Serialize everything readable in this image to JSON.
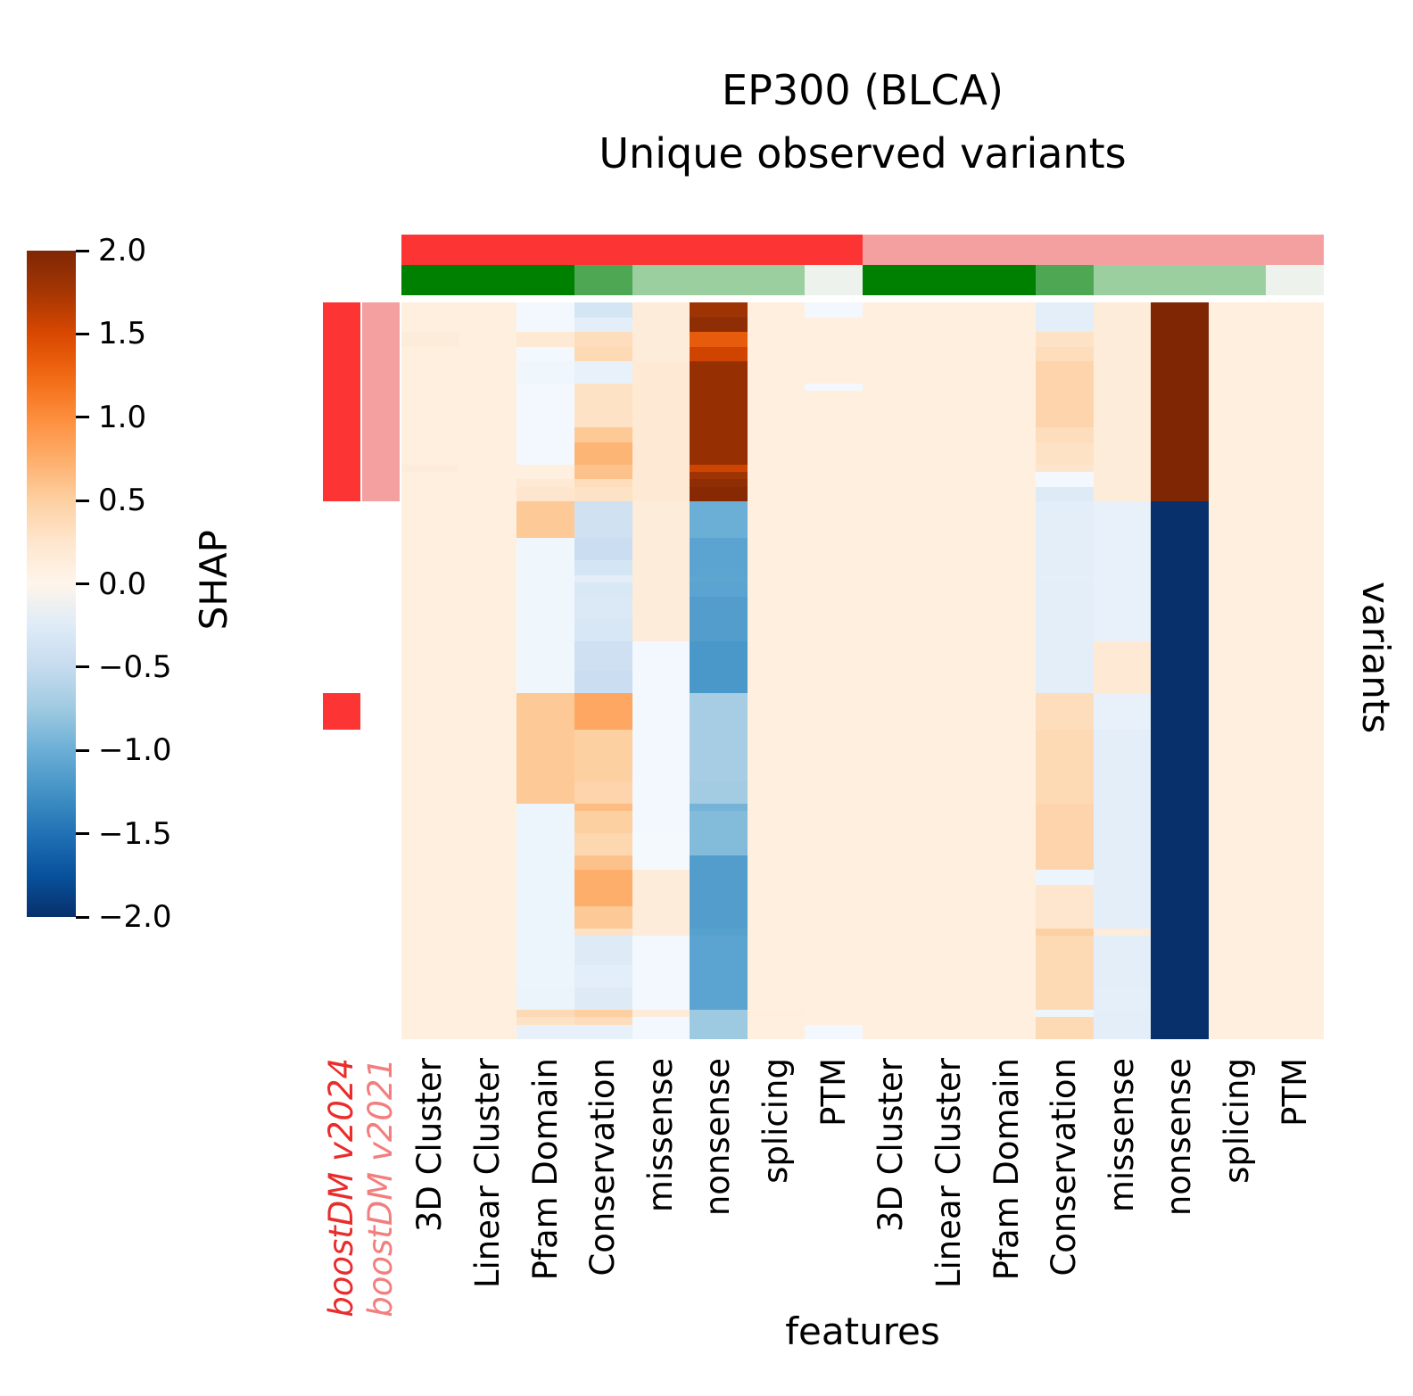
{
  "title": {
    "line1": "EP300 (BLCA)",
    "line2": "Unique observed variants"
  },
  "axes": {
    "x_label": "features",
    "y_label": "variants"
  },
  "colorbar": {
    "label": "SHAP",
    "ticks": [
      "2.0",
      "1.5",
      "1.0",
      "0.5",
      "0.0",
      "−0.5",
      "−1.0",
      "−1.5",
      "−2.0"
    ],
    "vmax_color": "#7f2704",
    "zero_color": "#fff5eb",
    "vmin_color": "#08306b"
  },
  "chart_data": {
    "type": "heatmap",
    "title": "EP300 (BLCA) Unique observed variants",
    "value_name": "SHAP",
    "value_range": [
      -2,
      2
    ],
    "xlabel": "features",
    "ylabel": "variants",
    "columns": [
      "3D Cluster",
      "Linear Cluster",
      "Pfam Domain",
      "Conservation",
      "missense",
      "nonsense",
      "splicing",
      "PTM",
      "3D Cluster",
      "Linear Cluster",
      "Pfam Domain",
      "Conservation",
      "missense",
      "nonsense",
      "splicing",
      "PTM"
    ],
    "row_annotation_columns": [
      {
        "label": "boostDM v2024",
        "fill_color": "#fc3434",
        "text_color": "#e92c2c"
      },
      {
        "label": "boostDM v2021",
        "fill_color": "#f5a0a0",
        "text_color": "#f37e7e"
      }
    ],
    "column_annotations": {
      "model_bar": [
        {
          "label": "boostDM v2024",
          "span": 8,
          "color": "#fc3434"
        },
        {
          "label": "boostDM v2021",
          "span": 8,
          "color": "#f5a0a0"
        }
      ],
      "feature_group_bar": [
        {
          "span": 3,
          "color": "#008000"
        },
        {
          "span": 1,
          "color": "#4ea853"
        },
        {
          "span": 3,
          "color": "#9ccf9f"
        },
        {
          "span": 1,
          "color": "#edf2ec"
        },
        {
          "span": 3,
          "color": "#008000"
        },
        {
          "span": 1,
          "color": "#4ea853"
        },
        {
          "span": 3,
          "color": "#9ccf9f"
        },
        {
          "span": 1,
          "color": "#edf2ec"
        }
      ]
    },
    "positive_ramp": [
      "#fff5eb",
      "#fee6ce",
      "#fdd0a2",
      "#fdae6b",
      "#fd8d3c",
      "#f16913",
      "#d94801",
      "#a63603",
      "#7f2704"
    ],
    "negative_ramp": [
      "#f7fbff",
      "#deebf7",
      "#c6dbef",
      "#9ecae1",
      "#6baed6",
      "#4292c6",
      "#2171b5",
      "#08519c",
      "#08306b"
    ],
    "row_groups": [
      {
        "n": 2,
        "ann": [
          1,
          1
        ],
        "shap": [
          0.1,
          0.1,
          -0.05,
          -0.35,
          0.15,
          1.8,
          0.1,
          -0.05,
          0.1,
          0.1,
          0.1,
          -0.2,
          0.15,
          2,
          0.1,
          0.1
        ]
      },
      {
        "n": 2,
        "ann": [
          1,
          1
        ],
        "shap": [
          0.1,
          0.1,
          -0.05,
          -0.2,
          0.15,
          1.9,
          0.1,
          0.1,
          0.1,
          0.1,
          0.1,
          -0.2,
          0.15,
          2,
          0.1,
          0.1
        ]
      },
      {
        "n": 2,
        "ann": [
          1,
          1
        ],
        "shap": [
          0.15,
          0.1,
          0.2,
          0.35,
          0.15,
          1.35,
          0.1,
          0.1,
          0.1,
          0.1,
          0.1,
          0.3,
          0.15,
          2,
          0.1,
          0.1
        ]
      },
      {
        "n": 2,
        "ann": [
          1,
          1
        ],
        "shap": [
          0.1,
          0.1,
          -0.05,
          0.4,
          0.15,
          1.55,
          0.1,
          0.1,
          0.1,
          0.1,
          0.1,
          0.35,
          0.15,
          2,
          0.1,
          0.1
        ]
      },
      {
        "n": 3,
        "ann": [
          1,
          1
        ],
        "shap": [
          0.1,
          0.1,
          -0.08,
          -0.15,
          0.2,
          1.85,
          0.1,
          0.1,
          0.1,
          0.1,
          0.1,
          0.45,
          0.15,
          2,
          0.1,
          0.1
        ]
      },
      {
        "n": 1,
        "ann": [
          1,
          1
        ],
        "shap": [
          0.1,
          0.1,
          -0.05,
          0.3,
          0.2,
          1.85,
          0.1,
          -0.05,
          0.1,
          0.1,
          0.1,
          0.45,
          0.15,
          2,
          0.1,
          0.1
        ]
      },
      {
        "n": 5,
        "ann": [
          1,
          1
        ],
        "shap": [
          0.1,
          0.1,
          -0.05,
          0.3,
          0.2,
          1.85,
          0.1,
          0.1,
          0.1,
          0.1,
          0.1,
          0.45,
          0.15,
          2,
          0.1,
          0.1
        ]
      },
      {
        "n": 2,
        "ann": [
          1,
          1
        ],
        "shap": [
          0.1,
          0.1,
          -0.05,
          0.55,
          0.2,
          1.85,
          0.1,
          0.1,
          0.1,
          0.1,
          0.1,
          0.35,
          0.15,
          2,
          0.1,
          0.1
        ]
      },
      {
        "n": 3,
        "ann": [
          1,
          1
        ],
        "shap": [
          0.1,
          0.1,
          -0.05,
          0.7,
          0.2,
          1.85,
          0.1,
          0.1,
          0.1,
          0.1,
          0.1,
          0.3,
          0.15,
          2,
          0.1,
          0.1
        ]
      },
      {
        "n": 1,
        "ann": [
          1,
          1
        ],
        "shap": [
          0.15,
          0.1,
          0.1,
          0.6,
          0.2,
          1.55,
          0.1,
          0.1,
          0.1,
          0.1,
          0.1,
          0.25,
          0.15,
          2,
          0.1,
          0.1
        ]
      },
      {
        "n": 1,
        "ann": [
          1,
          1
        ],
        "shap": [
          0.1,
          0.1,
          0.1,
          0.6,
          0.2,
          1.8,
          0.1,
          0.1,
          0.1,
          0.1,
          0.1,
          -0.05,
          0.15,
          2,
          0.1,
          0.1
        ]
      },
      {
        "n": 1,
        "ann": [
          1,
          1
        ],
        "shap": [
          0.1,
          0.1,
          0.2,
          0.35,
          0.2,
          1.9,
          0.1,
          0.1,
          0.1,
          0.1,
          0.1,
          -0.05,
          0.15,
          2,
          0.1,
          0.1
        ]
      },
      {
        "n": 2,
        "ann": [
          1,
          1
        ],
        "shap": [
          0.1,
          0.1,
          0.25,
          0.3,
          0.2,
          1.95,
          0.1,
          0.1,
          0.1,
          0.1,
          0.1,
          -0.25,
          0.15,
          2,
          0.1,
          0.1
        ]
      },
      {
        "n": 5,
        "ann": [
          0,
          0
        ],
        "shap": [
          0.1,
          0.1,
          0.55,
          -0.4,
          0.15,
          -1.0,
          0.1,
          0.1,
          0.1,
          0.1,
          0.1,
          -0.2,
          -0.15,
          -2,
          0.1,
          0.1
        ]
      },
      {
        "n": 3,
        "ann": [
          0,
          0
        ],
        "shap": [
          0.1,
          0.1,
          -0.08,
          -0.45,
          0.15,
          -1.1,
          0.1,
          0.1,
          0.1,
          0.1,
          0.1,
          -0.2,
          -0.15,
          -2,
          0.1,
          0.1
        ]
      },
      {
        "n": 2,
        "ann": [
          0,
          0
        ],
        "shap": [
          0.1,
          0.1,
          -0.08,
          -0.35,
          0.15,
          -1.1,
          0.1,
          0.1,
          0.1,
          0.1,
          0.1,
          -0.2,
          -0.15,
          -2,
          0.1,
          0.1
        ]
      },
      {
        "n": 1,
        "ann": [
          0,
          0
        ],
        "shap": [
          0.1,
          0.1,
          -0.08,
          -0.2,
          0.15,
          -1.08,
          0.1,
          0.1,
          0.1,
          0.1,
          0.1,
          -0.18,
          -0.15,
          -2,
          0.1,
          0.1
        ]
      },
      {
        "n": 2,
        "ann": [
          0,
          0
        ],
        "shap": [
          0.1,
          0.1,
          -0.08,
          -0.3,
          0.15,
          -1.1,
          0.1,
          0.1,
          0.1,
          0.1,
          0.1,
          -0.2,
          -0.15,
          -2,
          0.1,
          0.1
        ]
      },
      {
        "n": 3,
        "ann": [
          0,
          0
        ],
        "shap": [
          0.1,
          0.1,
          -0.08,
          -0.28,
          0.15,
          -1.15,
          0.1,
          0.1,
          0.1,
          0.1,
          0.1,
          -0.2,
          -0.15,
          -2,
          0.1,
          0.1
        ]
      },
      {
        "n": 3,
        "ann": [
          0,
          0
        ],
        "shap": [
          0.1,
          0.1,
          -0.08,
          -0.32,
          0.15,
          -1.15,
          0.1,
          0.1,
          0.1,
          0.1,
          0.1,
          -0.2,
          -0.15,
          -2,
          0.1,
          0.1
        ]
      },
      {
        "n": 4,
        "ann": [
          0,
          0
        ],
        "shap": [
          0.1,
          0.1,
          -0.08,
          -0.42,
          -0.05,
          -1.2,
          0.1,
          0.1,
          0.1,
          0.1,
          0.1,
          -0.2,
          0.2,
          -2,
          0.1,
          0.1
        ]
      },
      {
        "n": 3,
        "ann": [
          0,
          0
        ],
        "shap": [
          0.1,
          0.1,
          -0.08,
          -0.45,
          -0.05,
          -1.2,
          0.1,
          0.1,
          0.1,
          0.1,
          0.1,
          -0.2,
          0.2,
          -2,
          0.1,
          0.1
        ]
      },
      {
        "n": 5,
        "ann": [
          1,
          0
        ],
        "shap": [
          0.1,
          0.1,
          0.55,
          0.8,
          -0.05,
          -0.7,
          0.1,
          0.1,
          0.1,
          0.1,
          0.1,
          0.35,
          -0.15,
          -2,
          0.1,
          0.1
        ]
      },
      {
        "n": 7,
        "ann": [
          0,
          0
        ],
        "shap": [
          0.1,
          0.1,
          0.55,
          0.5,
          -0.05,
          -0.7,
          0.1,
          0.1,
          0.1,
          0.1,
          0.1,
          0.4,
          -0.2,
          -2,
          0.1,
          0.1
        ]
      },
      {
        "n": 3,
        "ann": [
          0,
          0
        ],
        "shap": [
          0.1,
          0.1,
          0.55,
          0.45,
          -0.05,
          -0.72,
          0.1,
          0.1,
          0.1,
          0.1,
          0.1,
          0.4,
          -0.2,
          -2,
          0.1,
          0.1
        ]
      },
      {
        "n": 1,
        "ann": [
          0,
          0
        ],
        "shap": [
          0.1,
          0.1,
          -0.1,
          0.65,
          -0.05,
          -0.95,
          0.1,
          0.1,
          0.1,
          0.1,
          0.1,
          0.45,
          -0.2,
          -2,
          0.1,
          0.1
        ]
      },
      {
        "n": 3,
        "ann": [
          0,
          0
        ],
        "shap": [
          0.1,
          0.1,
          -0.1,
          0.5,
          -0.05,
          -0.88,
          0.1,
          0.1,
          0.1,
          0.1,
          0.1,
          0.45,
          -0.2,
          -2,
          0.1,
          0.1
        ]
      },
      {
        "n": 3,
        "ann": [
          0,
          0
        ],
        "shap": [
          0.1,
          0.1,
          -0.1,
          0.42,
          -0.03,
          -0.88,
          0.1,
          0.1,
          0.1,
          0.1,
          0.1,
          0.45,
          -0.2,
          -2,
          0.1,
          0.1
        ]
      },
      {
        "n": 2,
        "ann": [
          0,
          0
        ],
        "shap": [
          0.1,
          0.1,
          -0.1,
          0.6,
          -0.03,
          -1.15,
          0.1,
          0.1,
          0.1,
          0.1,
          0.1,
          0.45,
          -0.2,
          -2,
          0.1,
          0.1
        ]
      },
      {
        "n": 2,
        "ann": [
          0,
          0
        ],
        "shap": [
          0.1,
          0.1,
          -0.1,
          0.75,
          0.15,
          -1.15,
          0.1,
          0.1,
          0.1,
          0.1,
          0.1,
          -0.1,
          -0.2,
          -2,
          0.1,
          0.1
        ]
      },
      {
        "n": 3,
        "ann": [
          0,
          0
        ],
        "shap": [
          0.1,
          0.1,
          -0.1,
          0.75,
          0.15,
          -1.15,
          0.1,
          0.1,
          0.1,
          0.1,
          0.1,
          0.25,
          -0.2,
          -2,
          0.1,
          0.1
        ]
      },
      {
        "n": 3,
        "ann": [
          0,
          0
        ],
        "shap": [
          0.1,
          0.1,
          -0.1,
          0.55,
          0.15,
          -1.15,
          0.1,
          0.1,
          0.1,
          0.1,
          0.1,
          0.25,
          -0.2,
          -2,
          0.1,
          0.1
        ]
      },
      {
        "n": 1,
        "ann": [
          0,
          0
        ],
        "shap": [
          0.1,
          0.1,
          -0.1,
          0.3,
          0.15,
          -1.12,
          0.1,
          0.1,
          0.1,
          0.1,
          0.1,
          0.5,
          0.15,
          -2,
          0.1,
          0.1
        ]
      },
      {
        "n": 4,
        "ann": [
          0,
          0
        ],
        "shap": [
          0.1,
          0.1,
          -0.1,
          -0.25,
          -0.05,
          -1.1,
          0.1,
          0.1,
          0.1,
          0.1,
          0.1,
          0.4,
          -0.2,
          -2,
          0.1,
          0.1
        ]
      },
      {
        "n": 3,
        "ann": [
          0,
          0
        ],
        "shap": [
          0.1,
          0.1,
          -0.1,
          -0.2,
          -0.05,
          -1.1,
          0.1,
          0.1,
          0.1,
          0.1,
          0.1,
          0.4,
          -0.2,
          -2,
          0.1,
          0.1
        ]
      },
      {
        "n": 3,
        "ann": [
          0,
          0
        ],
        "shap": [
          0.1,
          0.1,
          -0.12,
          -0.25,
          -0.05,
          -1.1,
          0.1,
          0.1,
          0.1,
          0.1,
          0.1,
          0.4,
          -0.18,
          -2,
          0.1,
          0.1
        ]
      },
      {
        "n": 1,
        "ann": [
          0,
          0
        ],
        "shap": [
          0.1,
          0.1,
          0.4,
          0.5,
          0.15,
          -0.75,
          0.12,
          0.1,
          0.1,
          0.1,
          0.1,
          -0.1,
          -0.2,
          -2,
          0.1,
          0.1
        ]
      },
      {
        "n": 1,
        "ann": [
          0,
          0
        ],
        "shap": [
          0.1,
          0.1,
          0.3,
          0.35,
          -0.05,
          -0.75,
          0.1,
          0.1,
          0.1,
          0.1,
          0.1,
          0.4,
          -0.2,
          -2,
          0.1,
          0.1
        ]
      },
      {
        "n": 2,
        "ann": [
          0,
          0
        ],
        "shap": [
          0.1,
          0.1,
          -0.15,
          -0.15,
          -0.05,
          -0.75,
          0.1,
          -0.05,
          0.1,
          0.1,
          0.1,
          0.4,
          -0.2,
          -2,
          0.1,
          0.1
        ]
      }
    ]
  }
}
